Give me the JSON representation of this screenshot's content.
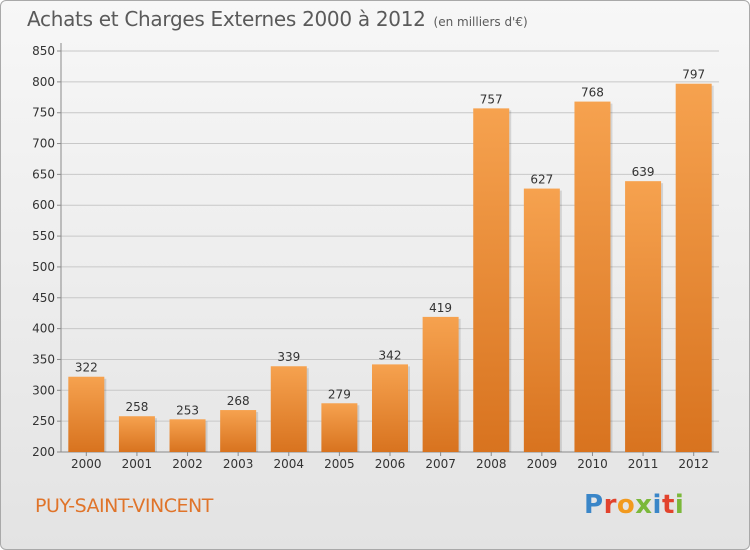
{
  "header": {
    "title": "Achats et Charges Externes 2000 à 2012",
    "subtitle": "(en milliers d'€)"
  },
  "footer": {
    "commune": "PUY-SAINT-VINCENT",
    "brand": "Proxiti"
  },
  "colors": {
    "bar_light": "#f6a24f",
    "bar_dark": "#d8731f",
    "title": "#5a5a5a",
    "commune": "#e0742a"
  },
  "chart_data": {
    "type": "bar",
    "title": "Achats et Charges Externes 2000 à 2012",
    "subtitle": "(en milliers d'€)",
    "categories": [
      "2000",
      "2001",
      "2002",
      "2003",
      "2004",
      "2005",
      "2006",
      "2007",
      "2008",
      "2009",
      "2010",
      "2011",
      "2012"
    ],
    "values": [
      322,
      258,
      253,
      268,
      339,
      279,
      342,
      419,
      757,
      627,
      768,
      639,
      797
    ],
    "ylim": [
      200,
      850
    ],
    "yticks": [
      200,
      250,
      300,
      350,
      400,
      450,
      500,
      550,
      600,
      650,
      700,
      750,
      800,
      850
    ],
    "grid": true,
    "data_labels": true
  }
}
